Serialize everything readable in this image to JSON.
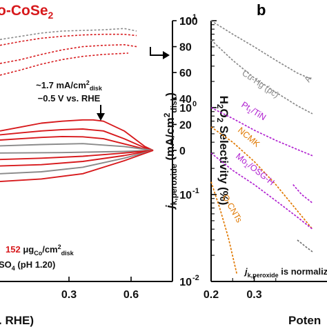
{
  "colors": {
    "red": "#d7191c",
    "gray": "#8a8a8a",
    "purple": "#b020d0",
    "orange": "#e07800",
    "darkgray": "#707070"
  },
  "chart_data": [
    {
      "panel": "a",
      "type": "line",
      "title_visible": "o-CoSe2",
      "title_base": "o-CoSe",
      "title_sub": "2",
      "xlabel_visible": ". RHE)",
      "xticks": [
        "0.3",
        "0.6"
      ],
      "yright_label": {
        "a": "H",
        "b": "2",
        "c": "O",
        "d": "2",
        "e": " Selectivity (%)"
      },
      "yright_ticks": [
        "0",
        "20",
        "40",
        "60",
        "80",
        "100"
      ],
      "yright_range": [
        0,
        100
      ],
      "annotation": {
        "line1a": "~1.7 mA/cm",
        "line1b": "2",
        "line1c": "disk",
        "line2": "−0.5 V vs. RHE"
      },
      "loading": {
        "value": "152",
        "unit_a": " μg",
        "unit_b": "Co",
        "unit_c": "/cm",
        "unit_d": "2",
        "unit_e": "disk"
      },
      "electrolyte": {
        "a": "SO",
        "b": "4",
        "c": " (pH 1.20)"
      },
      "selectivity_series": [
        {
          "color": "gray",
          "style": "dashed",
          "x": [
            0.0,
            0.1,
            0.2,
            0.3,
            0.4,
            0.5,
            0.6,
            0.66
          ],
          "y": [
            85.5,
            88,
            90.5,
            92,
            92.5,
            93,
            94,
            92
          ]
        },
        {
          "color": "red",
          "style": "dashed",
          "x": [
            0.0,
            0.1,
            0.2,
            0.3,
            0.4,
            0.5,
            0.6,
            0.66
          ],
          "y": [
            81,
            84,
            86.5,
            88,
            89,
            89.5,
            89.5,
            88.5
          ]
        },
        {
          "color": "red",
          "style": "dashed",
          "x": [
            0.0,
            0.1,
            0.2,
            0.3,
            0.4,
            0.5,
            0.6,
            0.66
          ],
          "y": [
            67,
            70,
            74,
            77.5,
            80,
            81,
            81.5,
            80
          ]
        },
        {
          "color": "red",
          "style": "dashed",
          "x": [
            0.0,
            0.1,
            0.2,
            0.3,
            0.4,
            0.5,
            0.62
          ],
          "y": [
            58,
            62,
            66.5,
            70,
            72.5,
            74,
            75
          ]
        }
      ],
      "ring_series": [
        {
          "color": "red",
          "x": [
            0.0,
            0.1,
            0.2,
            0.3,
            0.4,
            0.45,
            0.5,
            0.6,
            0.7,
            0.74
          ],
          "y": [
            15,
            18,
            21,
            22.5,
            23.5,
            23.5,
            22.5,
            15,
            3,
            0
          ]
        },
        {
          "color": "red",
          "x": [
            0.0,
            0.1,
            0.2,
            0.3,
            0.4,
            0.5,
            0.6,
            0.7,
            0.74
          ],
          "y": [
            12,
            13.5,
            15,
            16,
            16.5,
            15,
            9,
            2,
            0
          ]
        },
        {
          "color": "red",
          "x": [
            0.0,
            0.1,
            0.2,
            0.3,
            0.4,
            0.5,
            0.6,
            0.7,
            0.74
          ],
          "y": [
            8,
            9,
            10,
            10.7,
            10.5,
            9,
            5,
            1,
            0
          ]
        },
        {
          "color": "gray",
          "x": [
            0.0,
            0.2,
            0.4,
            0.6,
            0.74
          ],
          "y": [
            3.5,
            4.5,
            5.2,
            3,
            0
          ]
        },
        {
          "color": "gray",
          "x": [
            0.0,
            0.3,
            0.6,
            0.74
          ],
          "y": [
            -2,
            -1.7,
            -0.8,
            0
          ]
        },
        {
          "color": "red",
          "x": [
            0.0,
            0.2,
            0.4,
            0.6,
            0.74
          ],
          "y": [
            -7,
            -6,
            -4.5,
            -2,
            0
          ]
        },
        {
          "color": "red",
          "x": [
            0.0,
            0.2,
            0.4,
            0.6,
            0.74
          ],
          "y": [
            -12,
            -11,
            -8.5,
            -4,
            0
          ]
        },
        {
          "color": "gray",
          "x": [
            0.0,
            0.2,
            0.4,
            0.6,
            0.74
          ],
          "y": [
            -18,
            -16.5,
            -13,
            -6,
            0
          ]
        },
        {
          "color": "red",
          "x": [
            0.0,
            0.2,
            0.4,
            0.6,
            0.74
          ],
          "y": [
            -24,
            -22,
            -18,
            -8,
            0
          ]
        }
      ]
    },
    {
      "panel": "b",
      "type": "line",
      "panel_label": "b",
      "xlabel_visible": "Poten",
      "xticks": [
        0.2,
        0.3
      ],
      "xrange": [
        0.2,
        0.435
      ],
      "yscale": "log",
      "yrange": [
        0.01,
        10
      ],
      "yticks": [
        {
          "base": "10",
          "exp": "-2"
        },
        {
          "base": "10",
          "exp": "-1"
        },
        {
          "base": "10",
          "exp": "0"
        },
        {
          "base": "10",
          "exp": "1"
        }
      ],
      "ylabel": {
        "a": "j",
        "b": "k,peroxide",
        "c": " (mA/cm",
        "d": "2",
        "e": "disk",
        "f": ")"
      },
      "note": {
        "a": "j",
        "b": "k,peroxide",
        "c": " is normaliz"
      },
      "series": [
        {
          "name": "A",
          "color": "gray",
          "x": [
            0.2,
            0.25,
            0.3,
            0.35,
            0.4,
            0.435
          ],
          "y": [
            10,
            7,
            5,
            3.5,
            2.5,
            2.1
          ]
        },
        {
          "name": "Cu-Hg (pc)",
          "color": "gray",
          "x": [
            0.2,
            0.25,
            0.3,
            0.35,
            0.4,
            0.435
          ],
          "y": [
            6,
            3.5,
            2.2,
            1.5,
            1.05,
            0.85
          ]
        },
        {
          "name": "Pt/TiN",
          "color": "purple",
          "x": [
            0.2,
            0.25,
            0.3,
            0.35,
            0.4,
            0.435
          ],
          "y": [
            1.0,
            0.75,
            0.55,
            0.42,
            0.33,
            0.28
          ]
        },
        {
          "name": "NCMK",
          "color": "orange",
          "x": [
            0.2,
            0.25,
            0.3,
            0.35,
            0.4,
            0.435
          ],
          "y": [
            0.6,
            0.4,
            0.24,
            0.13,
            0.065,
            0.04
          ]
        },
        {
          "name": "Mo/OSG-H",
          "color": "purple",
          "x": [
            0.2,
            0.25,
            0.3,
            0.35,
            0.4,
            0.435
          ],
          "y": [
            0.3,
            0.19,
            0.13,
            0.085,
            0.055,
            0.04
          ]
        },
        {
          "name": "O-CNTs",
          "color": "orange",
          "x": [
            0.2,
            0.22,
            0.24,
            0.26
          ],
          "y": [
            0.14,
            0.07,
            0.032,
            0.012
          ]
        },
        {
          "name": "",
          "color": "purple",
          "x": [
            0.39,
            0.41,
            0.435
          ],
          "y": [
            0.13,
            0.1,
            0.08
          ]
        },
        {
          "name": "",
          "color": "darkgray",
          "x": [
            0.4,
            0.42,
            0.435
          ],
          "y": [
            0.03,
            0.025,
            0.022
          ]
        }
      ],
      "labels": {
        "A": {
          "text": "A"
        },
        "CuHg": {
          "text": "Cu-Hg (pc)"
        },
        "PtTiN": {
          "a": "Pt",
          "b": "1",
          "c": "/TiN"
        },
        "NCMK": {
          "text": "NCMK"
        },
        "MoOSG": {
          "a": "Mo",
          "b": "1",
          "c": "/OSG-H"
        },
        "OCNT": {
          "text": "O-CNTs"
        }
      }
    }
  ]
}
